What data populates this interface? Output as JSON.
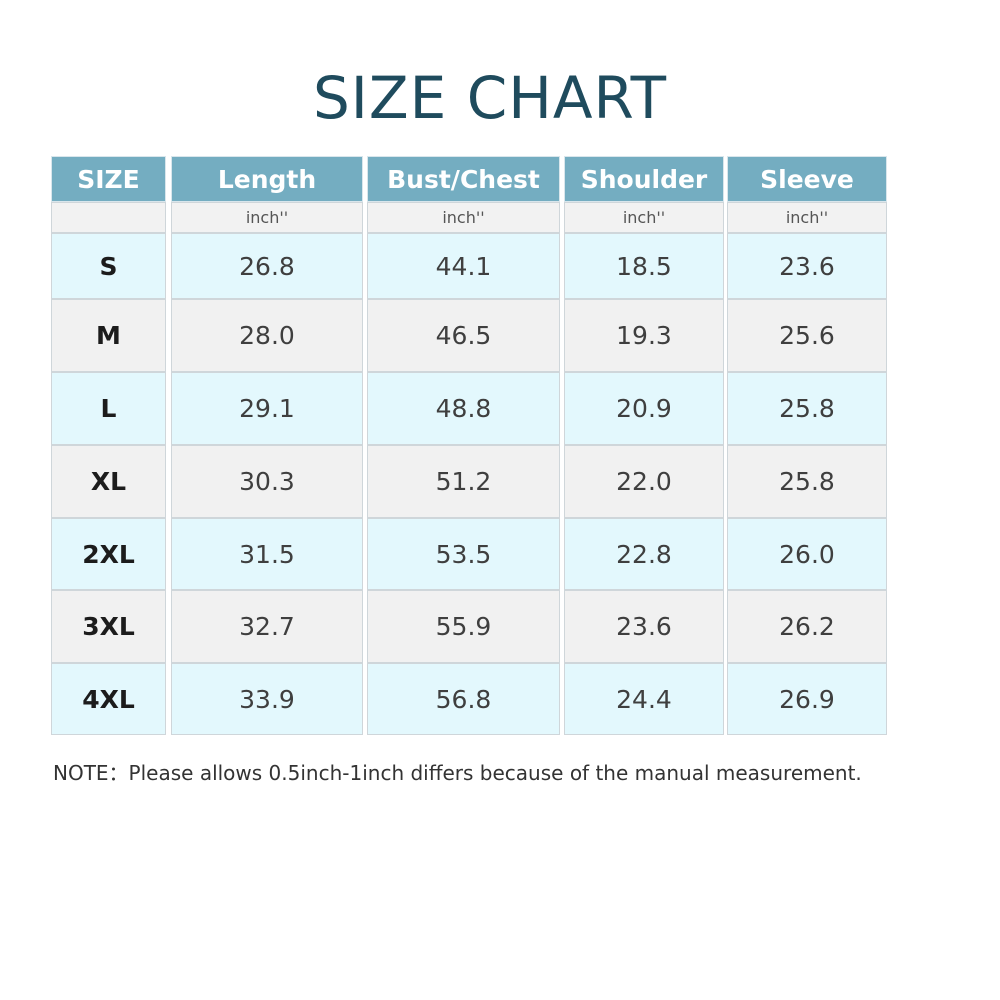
{
  "title": "SIZE CHART",
  "table": {
    "headers": [
      "SIZE",
      "Length",
      "Bust/Chest",
      "Shoulder",
      "Sleeve"
    ],
    "units": [
      "",
      "inch''",
      "inch''",
      "inch''",
      "inch''"
    ],
    "rows": [
      {
        "size": "S",
        "values": [
          "26.8",
          "44.1",
          "18.5",
          "23.6"
        ]
      },
      {
        "size": "M",
        "values": [
          "28.0",
          "46.5",
          "19.3",
          "25.6"
        ]
      },
      {
        "size": "L",
        "values": [
          "29.1",
          "48.8",
          "20.9",
          "25.8"
        ]
      },
      {
        "size": "XL",
        "values": [
          "30.3",
          "51.2",
          "22.0",
          "25.8"
        ]
      },
      {
        "size": "2XL",
        "values": [
          "31.5",
          "53.5",
          "22.8",
          "26.0"
        ]
      },
      {
        "size": "3XL",
        "values": [
          "32.7",
          "55.9",
          "23.6",
          "26.2"
        ]
      },
      {
        "size": "4XL",
        "values": [
          "33.9",
          "56.8",
          "24.4",
          "26.9"
        ]
      }
    ]
  },
  "note": "NOTE：Please allows 0.5inch-1inch differs because of the manual measurement.",
  "colors": {
    "title": "#1f4b5d",
    "header_bg": "#74adc1",
    "row_blue": "#e3f8fd",
    "row_gray": "#f1f1f1"
  }
}
